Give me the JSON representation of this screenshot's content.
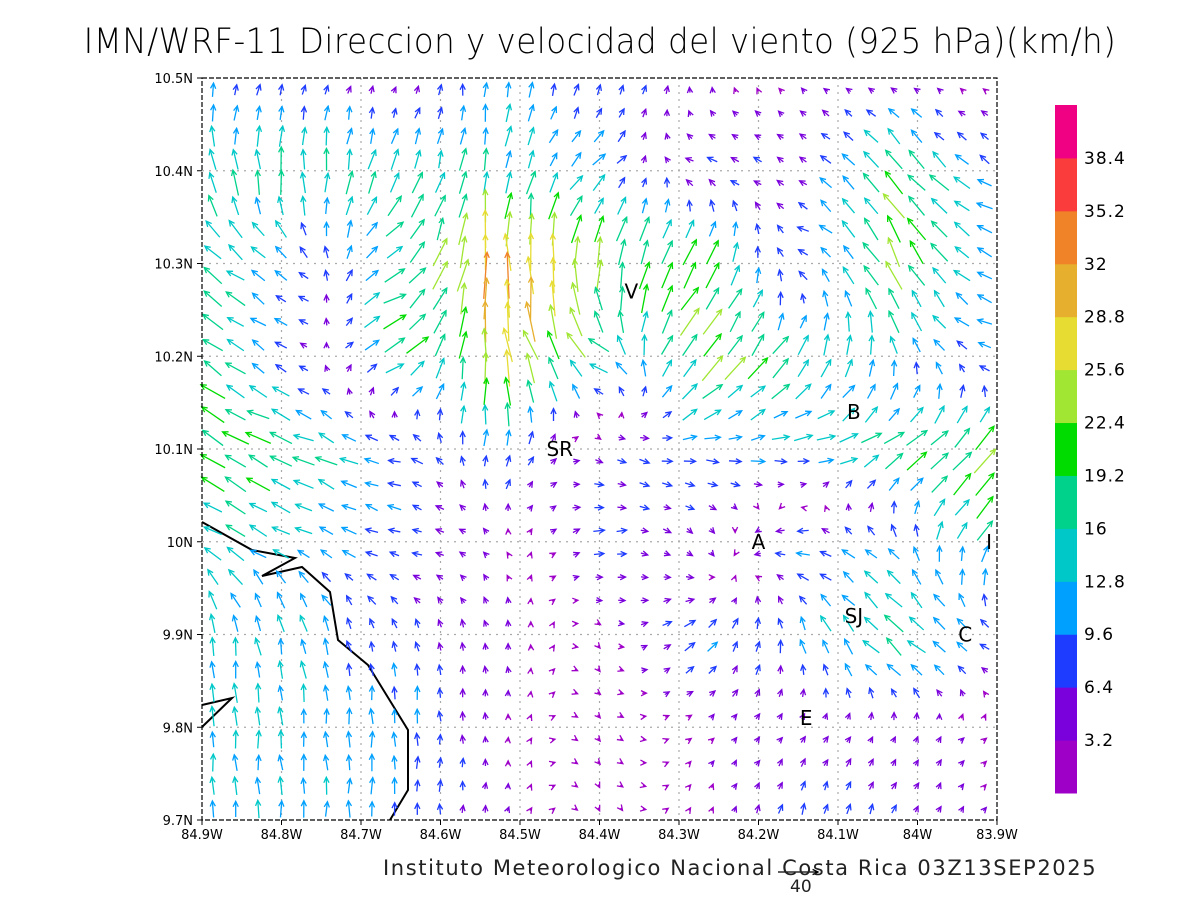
{
  "title": "IMN/WRF-11 Direccion y velocidad del viento (925 hPa)(km/h)",
  "footer": "Instituto Meteorologico Nacional Costa Rica 03Z13SEP2025",
  "reference_vector": {
    "label": "40",
    "value": 40
  },
  "chart_data": {
    "type": "vector_field",
    "title": "IMN/WRF-11 Direccion y velocidad del viento (925 hPa)(km/h)",
    "units": "km/h",
    "xlim": [
      -84.9,
      -83.9
    ],
    "ylim": [
      9.7,
      10.5
    ],
    "x_ticks": [
      "84.9W",
      "84.8W",
      "84.7W",
      "84.6W",
      "84.5W",
      "84.4W",
      "84.3W",
      "84.2W",
      "84.1W",
      "84W",
      "83.9W"
    ],
    "y_ticks": [
      "10.5N",
      "10.4N",
      "10.3N",
      "10.2N",
      "10.1N",
      "10N",
      "9.9N",
      "9.8N",
      "9.7N"
    ],
    "grid": true,
    "colorbar": {
      "levels": [
        "3.2",
        "6.4",
        "9.6",
        "12.8",
        "16",
        "19.2",
        "22.4",
        "25.6",
        "28.8",
        "32",
        "35.2",
        "38.4"
      ],
      "colors": [
        "#9e00c8",
        "#7a00dc",
        "#1e3cff",
        "#00a0ff",
        "#00c8c8",
        "#00d28c",
        "#00dc00",
        "#a0e632",
        "#e6dc32",
        "#e6af2d",
        "#f08228",
        "#fa3c3c",
        "#f00082"
      ],
      "placement": "right"
    },
    "stations": [
      {
        "label": "V",
        "lon": -84.36,
        "lat": 10.27
      },
      {
        "label": "B",
        "lon": -84.08,
        "lat": 10.14
      },
      {
        "label": "SR",
        "lon": -84.45,
        "lat": 10.1
      },
      {
        "label": "A",
        "lon": -84.2,
        "lat": 10.0
      },
      {
        "label": "I",
        "lon": -83.91,
        "lat": 10.0
      },
      {
        "label": "SJ",
        "lon": -84.08,
        "lat": 9.92
      },
      {
        "label": "C",
        "lon": -83.94,
        "lat": 9.9
      },
      {
        "label": "E",
        "lon": -84.14,
        "lat": 9.81
      }
    ],
    "wind_grid": {
      "lons": [
        -84.9,
        -84.775,
        -84.65,
        -84.525,
        -84.4,
        -84.275,
        -84.15,
        -84.025,
        -83.9
      ],
      "lats": [
        10.5,
        10.4,
        10.3,
        10.2,
        10.1,
        10.0,
        9.9,
        9.8,
        9.7
      ],
      "u": [
        [
          3,
          2,
          1,
          0,
          2,
          1,
          -2,
          -2,
          -1
        ],
        [
          -3,
          0,
          5,
          3,
          10,
          -8,
          -5,
          -15,
          -8
        ],
        [
          -14,
          -8,
          15,
          -2,
          4,
          12,
          -8,
          -10,
          -12
        ],
        [
          -15,
          -5,
          18,
          -5,
          -15,
          15,
          10,
          -3,
          -10
        ],
        [
          -18,
          -16,
          -10,
          4,
          5,
          10,
          12,
          15,
          15
        ],
        [
          -14,
          -10,
          -8,
          -2,
          8,
          3,
          -10,
          -6,
          10
        ],
        [
          -2,
          -3,
          -2,
          -1,
          2,
          8,
          -3,
          -15,
          -6
        ],
        [
          -1,
          -1,
          0,
          0,
          2,
          2,
          3,
          2,
          2
        ],
        [
          0,
          0,
          0,
          1,
          1,
          1,
          2,
          3,
          2
        ]
      ],
      "v": [
        [
          8,
          5,
          3,
          10,
          8,
          4,
          2,
          1,
          1
        ],
        [
          18,
          18,
          15,
          15,
          8,
          2,
          3,
          15,
          4
        ],
        [
          10,
          6,
          10,
          35,
          22,
          20,
          3,
          20,
          4
        ],
        [
          12,
          2,
          8,
          28,
          10,
          18,
          15,
          12,
          1
        ],
        [
          10,
          7,
          2,
          10,
          -3,
          0,
          0,
          10,
          18
        ],
        [
          8,
          5,
          2,
          2,
          2,
          -5,
          0,
          8,
          15
        ],
        [
          14,
          12,
          6,
          5,
          -2,
          6,
          10,
          12,
          3
        ],
        [
          13,
          12,
          12,
          3,
          -2,
          2,
          3,
          4,
          2
        ],
        [
          12,
          13,
          9,
          4,
          -2,
          2,
          8,
          6,
          2
        ]
      ]
    }
  }
}
